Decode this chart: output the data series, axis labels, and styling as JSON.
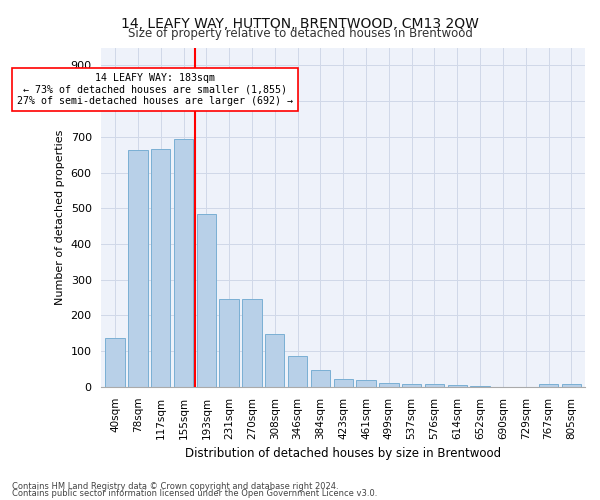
{
  "title": "14, LEAFY WAY, HUTTON, BRENTWOOD, CM13 2QW",
  "subtitle": "Size of property relative to detached houses in Brentwood",
  "xlabel": "Distribution of detached houses by size in Brentwood",
  "ylabel": "Number of detached properties",
  "bar_color": "#b8d0e8",
  "bar_edge_color": "#7aafd4",
  "background_color": "#eef2fa",
  "grid_color": "#d0d8e8",
  "categories": [
    "40sqm",
    "78sqm",
    "117sqm",
    "155sqm",
    "193sqm",
    "231sqm",
    "270sqm",
    "308sqm",
    "346sqm",
    "384sqm",
    "423sqm",
    "461sqm",
    "499sqm",
    "537sqm",
    "576sqm",
    "614sqm",
    "652sqm",
    "690sqm",
    "729sqm",
    "767sqm",
    "805sqm"
  ],
  "values": [
    137,
    663,
    667,
    693,
    483,
    246,
    246,
    147,
    85,
    48,
    22,
    18,
    11,
    7,
    7,
    6,
    1,
    0,
    0,
    9,
    9
  ],
  "ylim": [
    0,
    950
  ],
  "yticks": [
    0,
    100,
    200,
    300,
    400,
    500,
    600,
    700,
    800,
    900
  ],
  "red_line_bar_index": 3.5,
  "annotation_text1": "14 LEAFY WAY: 183sqm",
  "annotation_text2": "← 73% of detached houses are smaller (1,855)",
  "annotation_text3": "27% of semi-detached houses are larger (692) →",
  "footnote1": "Contains HM Land Registry data © Crown copyright and database right 2024.",
  "footnote2": "Contains public sector information licensed under the Open Government Licence v3.0."
}
